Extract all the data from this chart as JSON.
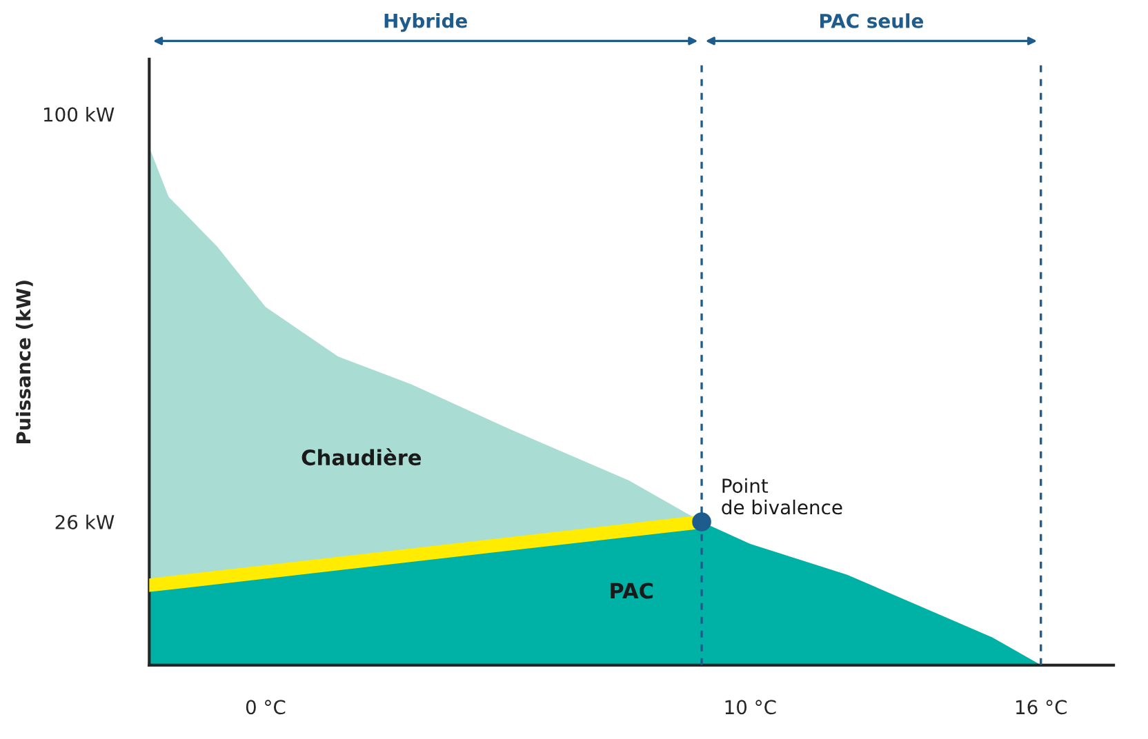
{
  "chart_data": {
    "type": "area",
    "ylabel": "Puissance (kW)",
    "xlim": [
      -2.4,
      17.5
    ],
    "ylim": [
      0,
      110
    ],
    "xticks": [
      {
        "value": 0,
        "label": "0 °C"
      },
      {
        "value": 10,
        "label": "10 °C"
      },
      {
        "value": 16,
        "label": "16 °C"
      }
    ],
    "yticks": [
      {
        "value": 26,
        "label": "26 kW"
      },
      {
        "value": 100,
        "label": "100 kW"
      }
    ],
    "legend": false,
    "series": [
      {
        "name": "Chaudière",
        "color": "#a9dcd3",
        "x": [
          -2.4,
          -2,
          -1,
          0,
          1.5,
          3,
          5,
          7.5,
          9,
          10,
          12,
          13.5,
          15,
          16
        ],
        "values": [
          94,
          85,
          76,
          65,
          56,
          51,
          43,
          33.5,
          26,
          22,
          16.4,
          10.7,
          5,
          0
        ]
      },
      {
        "name": "PAC",
        "color": "#00b2a5",
        "x": [
          -2.4,
          9,
          10,
          12,
          13.5,
          15,
          16
        ],
        "values": [
          13.5,
          26,
          22,
          16.4,
          10.7,
          5,
          0
        ]
      },
      {
        "type": "line",
        "color": "#ffec00",
        "x": [
          -2.4,
          9
        ],
        "values": [
          14.5,
          26
        ]
      },
      {
        "type": "scatter",
        "color": "#1d5c8c",
        "x": [
          9
        ],
        "values": [
          26
        ]
      }
    ],
    "ref_lines": [
      {
        "axis": "x",
        "value": 9,
        "label": "Hybride",
        "color": "#1d5c8c",
        "line_style": "dashed"
      },
      {
        "axis": "x",
        "value": 16,
        "label": "PAC seule",
        "color": "#1d5c8c",
        "line_style": "dashed"
      }
    ],
    "annotations": [
      {
        "text": "Point\nde bivalence",
        "x": 9,
        "y": 26
      }
    ]
  }
}
